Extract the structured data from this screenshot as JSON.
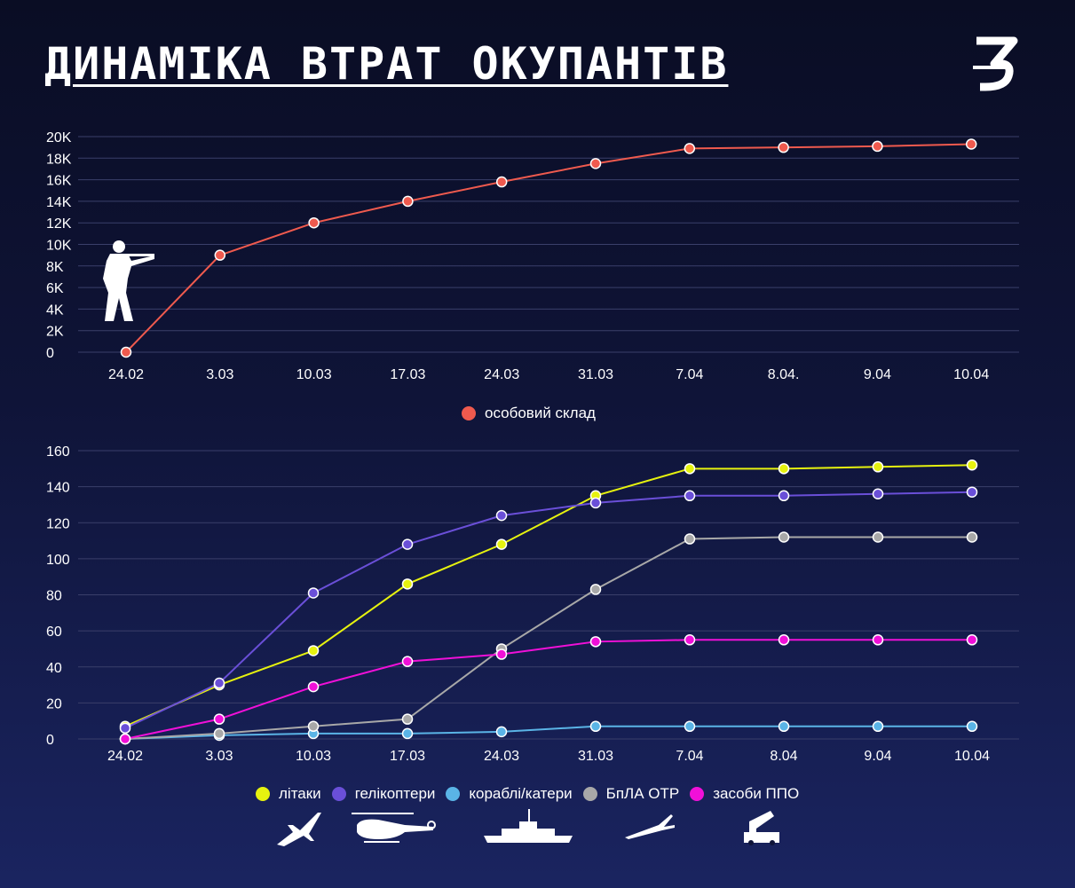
{
  "header": {
    "title": "ДИНАМІКА ВТРАТ ОКУПАНТІВ"
  },
  "chart_data": [
    {
      "type": "line",
      "categories": [
        "24.02",
        "3.03",
        "10.03",
        "17.03",
        "24.03",
        "31.03",
        "7.04",
        "8.04.",
        "9.04",
        "10.04"
      ],
      "ytick_labels": [
        "0",
        "2K",
        "4K",
        "6K",
        "8K",
        "10K",
        "12K",
        "14K",
        "16K",
        "18K",
        "20K"
      ],
      "ylim": [
        0,
        20000
      ],
      "grid": true,
      "legend": "bottom",
      "series": [
        {
          "name": "особовий склад",
          "color": "#ef5a4e",
          "values": [
            0,
            9000,
            12000,
            14000,
            15800,
            17500,
            18900,
            19000,
            19100,
            19300
          ]
        }
      ]
    },
    {
      "type": "line",
      "categories": [
        "24.02",
        "3.03",
        "10.03",
        "17.03",
        "24.03",
        "31.03",
        "7.04",
        "8.04",
        "9.04",
        "10.04"
      ],
      "ytick_labels": [
        "0",
        "20",
        "40",
        "60",
        "80",
        "100",
        "120",
        "140",
        "160"
      ],
      "ylim": [
        0,
        160
      ],
      "grid": true,
      "legend": "bottom",
      "series": [
        {
          "name": "літаки",
          "color": "#e6f20f",
          "values": [
            7,
            30,
            49,
            86,
            108,
            135,
            150,
            150,
            151,
            152
          ]
        },
        {
          "name": "гелікоптери",
          "color": "#6a4fd8",
          "values": [
            6,
            31,
            81,
            108,
            124,
            131,
            135,
            135,
            136,
            137
          ]
        },
        {
          "name": "кораблі/катери",
          "color": "#5ab4e6",
          "values": [
            0,
            2,
            3,
            3,
            4,
            7,
            7,
            7,
            7,
            7
          ]
        },
        {
          "name": "БпЛА ОТР",
          "color": "#a8a8a8",
          "values": [
            0,
            3,
            7,
            11,
            50,
            83,
            111,
            112,
            112,
            112
          ]
        },
        {
          "name": "засоби ППО",
          "color": "#f010d8",
          "values": [
            0,
            11,
            29,
            43,
            47,
            54,
            55,
            55,
            55,
            55
          ]
        }
      ]
    }
  ],
  "icons": [
    "soldier-icon",
    "airplane-icon",
    "helicopter-icon",
    "warship-icon",
    "drone-icon",
    "air-defense-launcher-icon"
  ]
}
